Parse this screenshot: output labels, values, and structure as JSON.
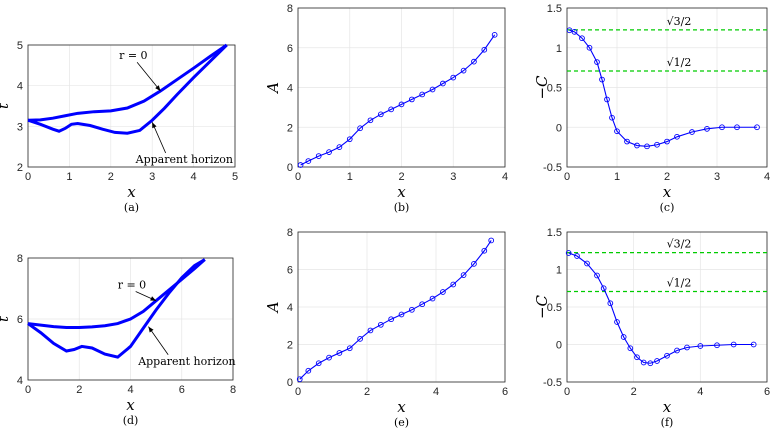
{
  "chart_data": [
    {
      "id": "a",
      "type": "line",
      "caption": "(a)",
      "xlabel": "x",
      "ylabel": "t",
      "xlim": [
        0,
        5
      ],
      "ylim": [
        2,
        5
      ],
      "xticks": [
        "0",
        "1",
        "2",
        "3",
        "4",
        "5"
      ],
      "yticks": [
        "2",
        "3",
        "4",
        "5"
      ],
      "grid": true,
      "series": [
        {
          "name": "r = 0",
          "x": [
            0,
            0.3,
            0.6,
            0.9,
            1.2,
            1.6,
            2.0,
            2.4,
            2.8,
            3.2,
            3.6,
            4.0,
            4.4,
            4.8
          ],
          "y": [
            3.15,
            3.16,
            3.2,
            3.26,
            3.32,
            3.36,
            3.38,
            3.45,
            3.62,
            3.87,
            4.15,
            4.43,
            4.72,
            5.0
          ]
        },
        {
          "name": "Apparent horizon",
          "x": [
            0,
            0.3,
            0.6,
            0.75,
            0.9,
            1.05,
            1.2,
            1.5,
            1.8,
            2.1,
            2.4,
            2.7,
            3.0,
            3.3,
            3.6,
            4.0,
            4.4,
            4.8
          ],
          "y": [
            3.15,
            3.05,
            2.93,
            2.88,
            2.95,
            3.05,
            3.07,
            3.02,
            2.93,
            2.85,
            2.83,
            2.9,
            3.15,
            3.45,
            3.78,
            4.2,
            4.6,
            5.0
          ]
        }
      ],
      "annotations": [
        {
          "text": "r = 0",
          "x": 2.2,
          "y": 4.65,
          "target": [
            3.2,
            3.87
          ]
        },
        {
          "text": "Apparent horizon",
          "x": 2.6,
          "y": 2.1,
          "target": [
            3.0,
            3.1
          ]
        }
      ]
    },
    {
      "id": "b",
      "type": "line",
      "caption": "(b)",
      "xlabel": "x",
      "ylabel": "A",
      "xlim": [
        0,
        4
      ],
      "ylim": [
        0,
        8
      ],
      "xticks": [
        "0",
        "1",
        "2",
        "3",
        "4"
      ],
      "yticks": [
        "0",
        "2",
        "4",
        "6",
        "8"
      ],
      "grid": true,
      "series": [
        {
          "x": [
            0.05,
            0.2,
            0.4,
            0.6,
            0.8,
            1.0,
            1.2,
            1.4,
            1.6,
            1.8,
            2.0,
            2.2,
            2.4,
            2.6,
            2.8,
            3.0,
            3.2,
            3.4,
            3.6,
            3.8
          ],
          "y": [
            0.1,
            0.3,
            0.55,
            0.75,
            1.0,
            1.4,
            1.95,
            2.35,
            2.65,
            2.9,
            3.15,
            3.4,
            3.65,
            3.9,
            4.2,
            4.5,
            4.85,
            5.3,
            5.9,
            6.65
          ]
        }
      ]
    },
    {
      "id": "c",
      "type": "line",
      "caption": "(c)",
      "xlabel": "x",
      "ylabel": "−C",
      "xlim": [
        0,
        4
      ],
      "ylim": [
        -0.5,
        1.5
      ],
      "xticks": [
        "0",
        "1",
        "2",
        "3",
        "4"
      ],
      "yticks": [
        "-0.5",
        "0",
        "0.5",
        "1",
        "1.5"
      ],
      "grid": true,
      "series": [
        {
          "x": [
            0.05,
            0.15,
            0.3,
            0.45,
            0.6,
            0.7,
            0.8,
            0.9,
            1.0,
            1.2,
            1.4,
            1.6,
            1.8,
            2.0,
            2.2,
            2.5,
            2.8,
            3.1,
            3.4,
            3.8
          ],
          "y": [
            1.22,
            1.2,
            1.12,
            1.0,
            0.82,
            0.6,
            0.35,
            0.12,
            -0.05,
            -0.18,
            -0.23,
            -0.24,
            -0.22,
            -0.18,
            -0.12,
            -0.06,
            -0.02,
            0.0,
            0.0,
            0.0
          ]
        }
      ],
      "hlines": [
        {
          "y": 1.2247,
          "label": "√3/2",
          "color": "#00cc00"
        },
        {
          "y": 0.7071,
          "label": "√1/2",
          "color": "#00cc00"
        }
      ]
    },
    {
      "id": "d",
      "type": "line",
      "caption": "(d)",
      "xlabel": "x",
      "ylabel": "t",
      "xlim": [
        0,
        8
      ],
      "ylim": [
        4,
        8
      ],
      "xticks": [
        "0",
        "2",
        "4",
        "6",
        "8"
      ],
      "yticks": [
        "4",
        "6",
        "8"
      ],
      "grid": true,
      "series": [
        {
          "name": "r = 0",
          "x": [
            0,
            0.5,
            1.0,
            1.5,
            2.0,
            2.5,
            3.0,
            3.5,
            4.0,
            4.5,
            5.0,
            5.5,
            6.0,
            6.5,
            6.9
          ],
          "y": [
            5.85,
            5.8,
            5.75,
            5.72,
            5.72,
            5.74,
            5.78,
            5.85,
            6.0,
            6.25,
            6.6,
            6.95,
            7.3,
            7.65,
            7.95
          ]
        },
        {
          "name": "Apparent horizon",
          "x": [
            0,
            0.5,
            1.0,
            1.5,
            1.8,
            2.1,
            2.5,
            3.0,
            3.5,
            4.0,
            4.5,
            5.0,
            5.5,
            6.0,
            6.5,
            6.9
          ],
          "y": [
            5.85,
            5.55,
            5.2,
            4.95,
            5.0,
            5.1,
            5.05,
            4.85,
            4.75,
            5.1,
            5.7,
            6.3,
            6.85,
            7.35,
            7.75,
            7.95
          ]
        }
      ],
      "annotations": [
        {
          "text": "r = 0",
          "x": 3.5,
          "y": 7.0,
          "target": [
            5.0,
            6.6
          ]
        },
        {
          "text": "Apparent horizon",
          "x": 4.3,
          "y": 4.5,
          "target": [
            4.7,
            5.75
          ]
        }
      ]
    },
    {
      "id": "e",
      "type": "line",
      "caption": "(e)",
      "xlabel": "x",
      "ylabel": "A",
      "xlim": [
        0,
        6
      ],
      "ylim": [
        0,
        8
      ],
      "xticks": [
        "0",
        "2",
        "4",
        "6"
      ],
      "yticks": [
        "0",
        "2",
        "4",
        "6",
        "8"
      ],
      "grid": true,
      "series": [
        {
          "x": [
            0.05,
            0.3,
            0.6,
            0.9,
            1.2,
            1.5,
            1.8,
            2.1,
            2.4,
            2.7,
            3.0,
            3.3,
            3.6,
            3.9,
            4.2,
            4.5,
            4.8,
            5.1,
            5.4,
            5.6
          ],
          "y": [
            0.15,
            0.6,
            1.0,
            1.3,
            1.55,
            1.8,
            2.3,
            2.75,
            3.05,
            3.35,
            3.6,
            3.85,
            4.15,
            4.45,
            4.8,
            5.2,
            5.7,
            6.3,
            7.0,
            7.55
          ]
        }
      ]
    },
    {
      "id": "f",
      "type": "line",
      "caption": "(f)",
      "xlabel": "x",
      "ylabel": "−C",
      "xlim": [
        0,
        6
      ],
      "ylim": [
        -0.5,
        1.5
      ],
      "xticks": [
        "0",
        "2",
        "4",
        "6"
      ],
      "yticks": [
        "-0.5",
        "0",
        "0.5",
        "1",
        "1.5"
      ],
      "grid": true,
      "series": [
        {
          "x": [
            0.05,
            0.3,
            0.6,
            0.9,
            1.1,
            1.3,
            1.5,
            1.7,
            1.9,
            2.1,
            2.3,
            2.5,
            2.7,
            3.0,
            3.3,
            3.6,
            4.0,
            4.5,
            5.0,
            5.6
          ],
          "y": [
            1.22,
            1.18,
            1.08,
            0.92,
            0.75,
            0.55,
            0.3,
            0.1,
            -0.05,
            -0.17,
            -0.24,
            -0.25,
            -0.22,
            -0.15,
            -0.08,
            -0.04,
            -0.02,
            -0.01,
            0.0,
            0.0
          ]
        }
      ],
      "hlines": [
        {
          "y": 1.2247,
          "label": "√3/2",
          "color": "#00cc00"
        },
        {
          "y": 0.7071,
          "label": "√1/2",
          "color": "#00cc00"
        }
      ]
    }
  ],
  "style": {
    "line_color": "#0000ff",
    "ref_color": "#00cc00",
    "grid_color": "#e6e6e6"
  }
}
